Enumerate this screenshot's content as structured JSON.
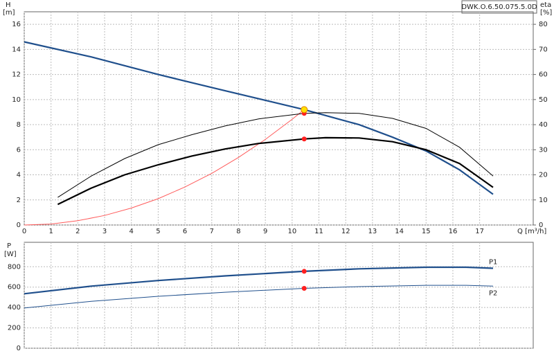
{
  "model": "DWK.O.6.50.075.5.0D",
  "chart_data": [
    {
      "type": "line",
      "y_label": "H",
      "y_unit": "[m]",
      "y2_label": "eta",
      "y2_unit": "[%]",
      "x_label": "Q [m³/h]",
      "xlim": [
        0,
        19
      ],
      "xticks": [
        0,
        1,
        2,
        3,
        4,
        5,
        6,
        7,
        8,
        9,
        10,
        11,
        12,
        13,
        14,
        15,
        16,
        17
      ],
      "ylim": [
        0,
        17
      ],
      "yticks": [
        0,
        2,
        4,
        6,
        8,
        10,
        12,
        14,
        16
      ],
      "y2lim": [
        0,
        85
      ],
      "y2ticks": [
        0,
        10,
        20,
        30,
        40,
        50,
        60,
        70,
        80
      ],
      "grid": true,
      "series": [
        {
          "color": "#ff5a5a",
          "style": "thin",
          "x": [
            0,
            1,
            2,
            3,
            4,
            5,
            6,
            7,
            8,
            9,
            10,
            10.45
          ],
          "values": [
            0,
            0.08,
            0.34,
            0.76,
            1.35,
            2.1,
            3.03,
            4.12,
            5.39,
            6.82,
            8.42,
            9.2
          ]
        },
        {
          "color": "#1f4f8c",
          "style": "thick",
          "x": [
            0,
            2.5,
            5,
            7.5,
            10.45,
            12.5,
            13.75,
            15,
            16.25,
            17.5
          ],
          "values": [
            14.6,
            13.4,
            12.0,
            10.7,
            9.2,
            8.0,
            7.0,
            5.9,
            4.4,
            2.45
          ]
        },
        {
          "color": "#000000",
          "style": "thin",
          "axis": "y2",
          "x": [
            1.25,
            2.5,
            3.75,
            5,
            6.25,
            7.5,
            8.75,
            10.45,
            11.25,
            12.5,
            13.75,
            15,
            16.25,
            17.5
          ],
          "values": [
            11,
            19.5,
            26.5,
            32,
            36,
            39.5,
            42.3,
            44.5,
            44.8,
            44.5,
            42.5,
            38.5,
            31,
            19.5
          ]
        },
        {
          "color": "#000000",
          "style": "thick",
          "axis": "y2",
          "x": [
            1.25,
            2.5,
            3.75,
            5,
            6.25,
            7.5,
            8.75,
            10.45,
            11.25,
            12.5,
            13.75,
            15,
            16.25,
            17.5
          ],
          "values": [
            8.2,
            14.7,
            20,
            24,
            27.5,
            30.3,
            32.5,
            34.3,
            34.8,
            34.7,
            33.2,
            30,
            24.5,
            15
          ]
        },
        {
          "color": "#ff2020",
          "style": "marker",
          "axis": "y2",
          "x": [
            10.45,
            10.45
          ],
          "values": [
            44.5,
            34.3
          ]
        },
        {
          "color": "#ffe000",
          "style": "marker",
          "x": [
            10.45
          ],
          "values": [
            9.2
          ]
        }
      ]
    },
    {
      "type": "line",
      "y_label": "P",
      "y_unit": "[W]",
      "xlim": [
        0,
        19
      ],
      "ylim": [
        0,
        1040
      ],
      "yticks": [
        0,
        200,
        400,
        600,
        800
      ],
      "grid": true,
      "series": [
        {
          "name": "P1",
          "color": "#1f4f8c",
          "style": "thick",
          "x": [
            0,
            2.5,
            5,
            7.5,
            10.45,
            12.5,
            15,
            16.5,
            17.5
          ],
          "values": [
            535,
            610,
            665,
            710,
            755,
            780,
            795,
            795,
            785
          ]
        },
        {
          "name": "P2",
          "color": "#1f4f8c",
          "style": "thin",
          "x": [
            0,
            2.5,
            5,
            7.5,
            10.45,
            12.5,
            15,
            16.5,
            17.5
          ],
          "values": [
            395,
            460,
            510,
            550,
            588,
            605,
            618,
            618,
            610
          ]
        },
        {
          "color": "#ff2020",
          "style": "marker",
          "x": [
            10.45,
            10.45
          ],
          "values": [
            755,
            588
          ]
        }
      ]
    }
  ]
}
